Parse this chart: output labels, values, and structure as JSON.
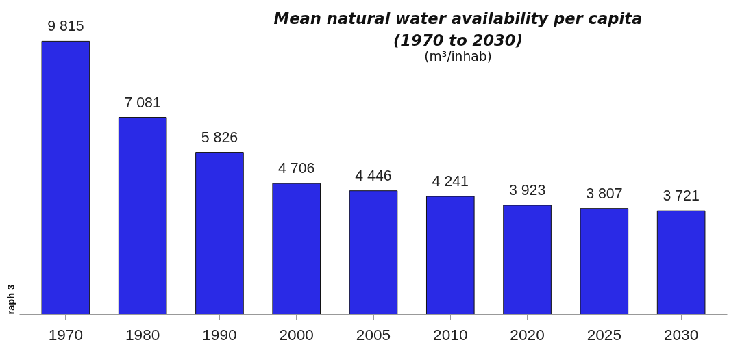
{
  "chart_data": {
    "type": "bar",
    "title": "Mean natural water availability per capita\n(1970 to 2030)",
    "subtitle": "(m³/inhab)",
    "categories": [
      "1970",
      "1980",
      "1990",
      "2000",
      "2005",
      "2010",
      "2020",
      "2025",
      "2030"
    ],
    "values": [
      9815,
      7081,
      5826,
      4706,
      4446,
      4241,
      3923,
      3807,
      3721
    ],
    "value_labels": [
      "9 815",
      "7 081",
      "5 826",
      "4 706",
      "4 446",
      "4 241",
      "3 923",
      "3 807",
      "3 721"
    ],
    "color": "#2a2ae6",
    "grid": false,
    "annotations": [
      "raph 3"
    ]
  }
}
